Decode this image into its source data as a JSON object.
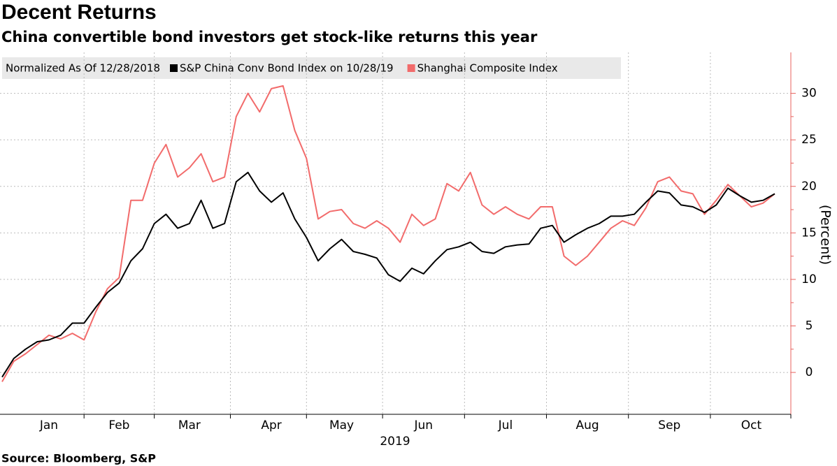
{
  "chart_data": {
    "type": "line",
    "title": "Decent Returns",
    "subtitle": "China convertible bond investors get stock-like returns this year",
    "legend_title": "Normalized As Of 12/28/2018",
    "xlabel": "2019",
    "ylabel": "(Percent)",
    "source": "Source: Bloomberg, S&P",
    "categories": [
      null,
      null,
      null,
      null,
      "Jan",
      null,
      null,
      null,
      null,
      null,
      "Feb",
      null,
      null,
      null,
      null,
      null,
      "Mar",
      null,
      null,
      null,
      null,
      null,
      null,
      "Apr",
      null,
      null,
      null,
      null,
      null,
      "May",
      null,
      null,
      null,
      null,
      null,
      null,
      "Jun",
      null,
      null,
      null,
      null,
      null,
      null,
      "Jul",
      null,
      null,
      null,
      null,
      null,
      null,
      "Aug",
      null,
      null,
      null,
      null,
      null,
      null,
      "Sep",
      null,
      null,
      null,
      null,
      null,
      null,
      "Oct",
      null,
      null
    ],
    "series": [
      {
        "name": "S&P China Conv Bond Index on 10/28/19",
        "color": "#000000",
        "values": [
          -0.5,
          1.5,
          2.5,
          3.3,
          3.5,
          4,
          5.3,
          5.3,
          7,
          8.6,
          9.6,
          12,
          13.3,
          16,
          17,
          15.5,
          16,
          18.5,
          15.5,
          16,
          20.5,
          21.5,
          19.5,
          18.3,
          19.3,
          16.5,
          14.5,
          12,
          13.3,
          14.3,
          13,
          12.7,
          12.3,
          10.5,
          9.8,
          11.2,
          10.6,
          12,
          13.2,
          13.5,
          14,
          13,
          12.8,
          13.5,
          13.7,
          13.8,
          15.5,
          15.8,
          14,
          14.8,
          15.5,
          16,
          16.8,
          16.8,
          17,
          18.3,
          19.5,
          19.3,
          18,
          17.8,
          17.2,
          18,
          19.8,
          19,
          18.3,
          18.5,
          19.2
        ]
      },
      {
        "name": "Shanghai Composite Index",
        "color": "#f26b6b",
        "values": [
          -1,
          1.2,
          2,
          3,
          4,
          3.6,
          4.2,
          3.5,
          6.5,
          9,
          10.2,
          18.5,
          18.5,
          22.5,
          24.5,
          21,
          22,
          23.5,
          20.5,
          21,
          27.5,
          30,
          28,
          30.5,
          30.8,
          26,
          23,
          16.5,
          17.3,
          17.5,
          16,
          15.5,
          16.3,
          15.5,
          14,
          17,
          15.8,
          16.5,
          20.3,
          19.5,
          21.5,
          18,
          17,
          17.8,
          17,
          16.5,
          17.8,
          17.8,
          12.5,
          11.5,
          12.5,
          14,
          15.5,
          16.3,
          15.8,
          17.7,
          20.5,
          21,
          19.5,
          19.2,
          17,
          18.5,
          20.2,
          19,
          17.8,
          18.2,
          19.2
        ]
      }
    ],
    "ylim": [
      -4.5,
      34.4
    ],
    "yticks": [
      0,
      5,
      10,
      15,
      20,
      25,
      30
    ],
    "grid": true
  }
}
